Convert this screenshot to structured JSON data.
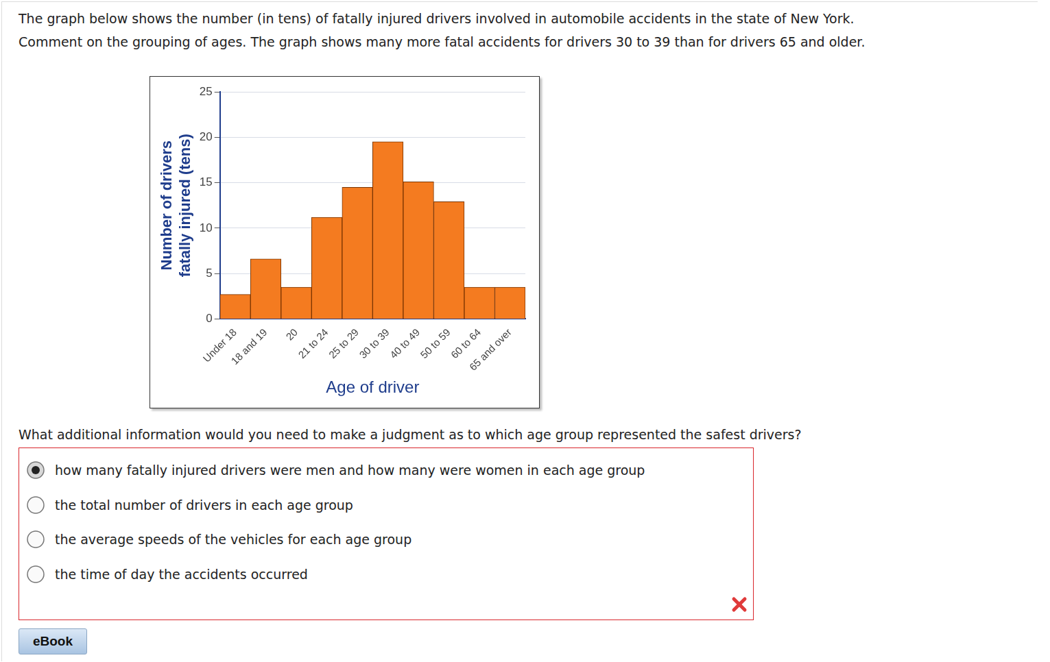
{
  "prompt": [
    "The graph below shows the number (in tens) of fatally injured drivers involved in automobile accidents in the state of New York.",
    "Comment on the grouping of ages. The graph shows many more fatal accidents for drivers 30 to 39 than for drivers 65 and older."
  ],
  "chart_data": {
    "type": "bar",
    "ylabel": [
      "Number of drivers",
      "fatally injured (tens)"
    ],
    "xlabel": "Age of driver",
    "categories": [
      "Under 18",
      "18 and 19",
      "20",
      "21 to 24",
      "25 to 29",
      "30 to 39",
      "40 to 49",
      "50 to 59",
      "60 to 64",
      "65 and over"
    ],
    "values": [
      2.7,
      6.6,
      3.5,
      11.2,
      14.5,
      19.5,
      15.1,
      12.9,
      3.5,
      3.5
    ],
    "color": "#f47b20",
    "ylim": [
      0,
      25
    ],
    "yticks": [
      0,
      5,
      10,
      15,
      20,
      25
    ],
    "grid": true
  },
  "question": "What additional information would you need to make a judgment as to which age group represented the safest drivers?",
  "options": [
    {
      "text": "how many fatally injured drivers were men and how many were women in each age group",
      "selected": true
    },
    {
      "text": "the total number of drivers in each age group",
      "selected": false
    },
    {
      "text": "the average speeds of the vehicles for each age group",
      "selected": false
    },
    {
      "text": "the time of day the accidents occurred",
      "selected": false
    }
  ],
  "button": "eBook"
}
